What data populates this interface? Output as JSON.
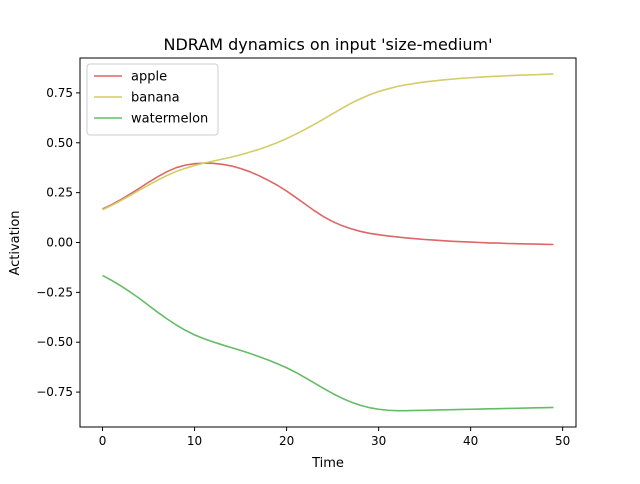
{
  "chart_data": {
    "type": "line",
    "title": "NDRAM dynamics on input 'size-medium'",
    "xlabel": "Time",
    "ylabel": "Activation",
    "xlim": [
      -2.45,
      51.45
    ],
    "ylim": [
      -0.925,
      0.925
    ],
    "xticks": [
      0,
      10,
      20,
      30,
      40,
      50
    ],
    "xtick_labels": [
      "0",
      "10",
      "20",
      "30",
      "40",
      "50"
    ],
    "yticks": [
      -0.75,
      -0.5,
      -0.25,
      0.0,
      0.25,
      0.5,
      0.75
    ],
    "ytick_labels": [
      "−0.75",
      "−0.50",
      "−0.25",
      "0.00",
      "0.25",
      "0.50",
      "0.75"
    ],
    "grid": false,
    "legend_position": "upper-left",
    "x": [
      0,
      1,
      2,
      3,
      4,
      5,
      6,
      7,
      8,
      9,
      10,
      11,
      12,
      13,
      14,
      15,
      16,
      17,
      18,
      19,
      20,
      21,
      22,
      23,
      24,
      25,
      26,
      27,
      28,
      29,
      30,
      31,
      32,
      33,
      34,
      35,
      36,
      37,
      38,
      39,
      40,
      41,
      42,
      43,
      44,
      45,
      46,
      47,
      48,
      49
    ],
    "series": [
      {
        "name": "apple",
        "color": "#dd6666",
        "values": [
          0.168,
          0.19,
          0.215,
          0.243,
          0.272,
          0.302,
          0.33,
          0.355,
          0.375,
          0.388,
          0.395,
          0.398,
          0.397,
          0.392,
          0.384,
          0.371,
          0.355,
          0.335,
          0.312,
          0.287,
          0.258,
          0.226,
          0.193,
          0.16,
          0.13,
          0.105,
          0.085,
          0.069,
          0.056,
          0.046,
          0.039,
          0.033,
          0.028,
          0.023,
          0.019,
          0.015,
          0.012,
          0.009,
          0.006,
          0.004,
          0.002,
          0.0,
          -0.002,
          -0.003,
          -0.005,
          -0.006,
          -0.007,
          -0.008,
          -0.009,
          -0.01
        ]
      },
      {
        "name": "banana",
        "color": "#d4cc66",
        "values": [
          0.164,
          0.186,
          0.21,
          0.236,
          0.262,
          0.288,
          0.313,
          0.336,
          0.356,
          0.372,
          0.386,
          0.398,
          0.408,
          0.418,
          0.428,
          0.44,
          0.453,
          0.467,
          0.483,
          0.501,
          0.521,
          0.543,
          0.567,
          0.592,
          0.618,
          0.645,
          0.672,
          0.698,
          0.72,
          0.74,
          0.757,
          0.77,
          0.782,
          0.791,
          0.798,
          0.805,
          0.81,
          0.815,
          0.819,
          0.823,
          0.826,
          0.829,
          0.832,
          0.834,
          0.836,
          0.838,
          0.84,
          0.841,
          0.843,
          0.845
        ]
      },
      {
        "name": "watermelon",
        "color": "#66bb66",
        "values": [
          -0.165,
          -0.19,
          -0.218,
          -0.248,
          -0.28,
          -0.315,
          -0.35,
          -0.383,
          -0.413,
          -0.44,
          -0.463,
          -0.482,
          -0.498,
          -0.513,
          -0.527,
          -0.541,
          -0.556,
          -0.572,
          -0.589,
          -0.608,
          -0.628,
          -0.651,
          -0.677,
          -0.704,
          -0.731,
          -0.757,
          -0.78,
          -0.8,
          -0.816,
          -0.828,
          -0.836,
          -0.841,
          -0.843,
          -0.843,
          -0.842,
          -0.841,
          -0.84,
          -0.839,
          -0.838,
          -0.837,
          -0.836,
          -0.835,
          -0.834,
          -0.833,
          -0.832,
          -0.831,
          -0.83,
          -0.829,
          -0.828,
          -0.827
        ]
      }
    ]
  }
}
